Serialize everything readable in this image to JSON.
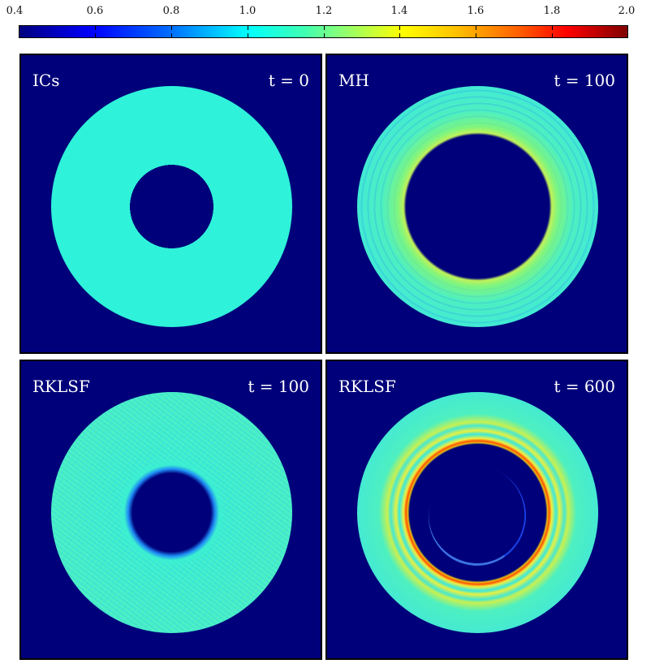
{
  "colorbar": {
    "ticks": [
      "0.4",
      "0.6",
      "0.8",
      "1.0",
      "1.2",
      "1.4",
      "1.6",
      "1.8",
      "2.0"
    ],
    "range": [
      0.4,
      2.0
    ],
    "colormap": "jet",
    "colors": [
      "#00007f",
      "#0000ff",
      "#00ffff",
      "#ffff00",
      "#ff0000",
      "#7f0000"
    ]
  },
  "panels": [
    {
      "label": "ICs",
      "time": "t = 0"
    },
    {
      "label": "MH",
      "time": "t = 100"
    },
    {
      "label": "RKLSF",
      "time": "t = 100"
    },
    {
      "label": "RKLSF",
      "time": "t = 600"
    }
  ],
  "background_color": "#00007a"
}
